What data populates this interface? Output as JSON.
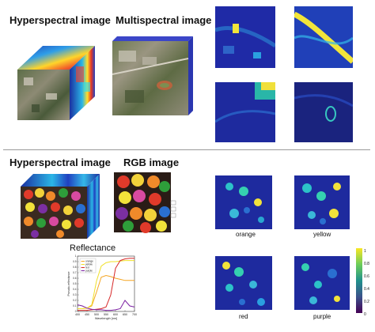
{
  "top": {
    "hyper_title": "Hyperspectral image",
    "multi_title": "Multispectral image"
  },
  "bottom": {
    "hyper_title": "Hyperspectral image",
    "rgb_title": "RGB image",
    "reflect_title": "Reflectance",
    "heatmap_labels": [
      "orange",
      "yellow",
      "red",
      "purple"
    ],
    "colorbar_ticks": [
      "1",
      "0.8",
      "0.6",
      "0.4",
      "0.2",
      "0"
    ]
  },
  "colors": {
    "orange": "#f5a623",
    "yellow": "#f0e02a",
    "red": "#d62728",
    "purple": "#7b1fa2",
    "divider": "#9a9a9a"
  },
  "chart_data": {
    "type": "line",
    "title": "Reflectance",
    "xlabel": "Wavelength [nm]",
    "ylabel": "Pseudo-reflectance",
    "xlim": [
      400,
      700
    ],
    "ylim": [
      0,
      1
    ],
    "x_ticks": [
      "400",
      "450",
      "500",
      "550",
      "600",
      "650",
      "700"
    ],
    "y_ticks": [
      "0",
      "0.1",
      "0.2",
      "0.3",
      "0.4",
      "0.5",
      "0.6",
      "0.7",
      "0.8",
      "0.9",
      "1"
    ],
    "legend_position": "top-left",
    "x": [
      400,
      425,
      450,
      475,
      500,
      525,
      550,
      575,
      600,
      625,
      650,
      675,
      700
    ],
    "series": [
      {
        "name": "orange",
        "color": "#f5a623",
        "values": [
          0.05,
          0.05,
          0.06,
          0.1,
          0.35,
          0.62,
          0.65,
          0.63,
          0.6,
          0.58,
          0.56,
          0.56,
          0.56
        ]
      },
      {
        "name": "yellow",
        "color": "#f0e02a",
        "values": [
          0.05,
          0.05,
          0.06,
          0.12,
          0.55,
          0.82,
          0.88,
          0.9,
          0.9,
          0.91,
          0.92,
          0.92,
          0.92
        ]
      },
      {
        "name": "red",
        "color": "#d62728",
        "values": [
          0.02,
          0.02,
          0.02,
          0.03,
          0.04,
          0.05,
          0.08,
          0.3,
          0.78,
          0.92,
          0.95,
          0.96,
          0.96
        ]
      },
      {
        "name": "purple",
        "color": "#7b1fa2",
        "values": [
          0.12,
          0.1,
          0.06,
          0.04,
          0.03,
          0.03,
          0.02,
          0.02,
          0.03,
          0.05,
          0.2,
          0.1,
          0.08
        ]
      }
    ]
  }
}
